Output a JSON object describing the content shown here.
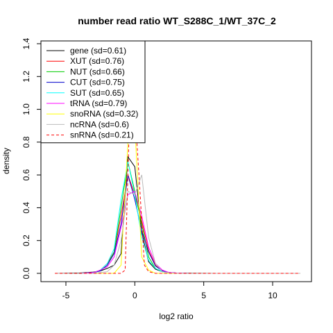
{
  "chart_data": {
    "type": "line",
    "title": "number read ratio WT_S288C_1/WT_37C_2",
    "xlabel": "log2 ratio",
    "ylabel": "density",
    "xlim": [
      -6,
      12
    ],
    "ylim": [
      0,
      1.4
    ],
    "x_ticks": [
      -5,
      0,
      5,
      10
    ],
    "x_tick_labels": [
      "-5",
      "0",
      "5",
      "10"
    ],
    "y_ticks": [
      0,
      0.2,
      0.4,
      0.6,
      0.8,
      1.0,
      1.2,
      1.4
    ],
    "y_tick_labels": [
      "0.0",
      "0.2",
      "0.4",
      "0.6",
      "0.8",
      "1.0",
      "1.2",
      "1.4"
    ],
    "legend_position": "top-left",
    "series": [
      {
        "name": "gene (sd=0.61)",
        "color": "#000000",
        "dash": "solid",
        "x": [
          -5.8,
          -4,
          -3,
          -2.5,
          -2,
          -1.5,
          -1,
          -0.5,
          0,
          0.5,
          1,
          1.5,
          2,
          2.5,
          3,
          4,
          6,
          12
        ],
        "y": [
          0,
          0.002,
          0.008,
          0.015,
          0.03,
          0.05,
          0.12,
          0.71,
          0.65,
          0.25,
          0.07,
          0.025,
          0.01,
          0.005,
          0.002,
          0.001,
          0,
          0
        ]
      },
      {
        "name": "XUT (sd=0.76)",
        "color": "#ff0000",
        "dash": "solid",
        "x": [
          -5.8,
          -4,
          -3,
          -2.5,
          -2,
          -1.5,
          -1,
          -0.5,
          0,
          0.5,
          1,
          1.5,
          2,
          2.5,
          3,
          4,
          6,
          12
        ],
        "y": [
          0,
          0,
          0.005,
          0.02,
          0.06,
          0.13,
          0.35,
          0.6,
          0.48,
          0.32,
          0.14,
          0.05,
          0.015,
          0.005,
          0.002,
          0,
          0,
          0
        ]
      },
      {
        "name": "NUT (sd=0.66)",
        "color": "#00cc00",
        "dash": "solid",
        "x": [
          -5.8,
          -4,
          -3,
          -2.5,
          -2,
          -1.5,
          -1,
          -0.5,
          0,
          0.5,
          1,
          1.5,
          2,
          2.5,
          3,
          4,
          6,
          12
        ],
        "y": [
          0,
          0,
          0.005,
          0.015,
          0.05,
          0.13,
          0.4,
          0.68,
          0.5,
          0.3,
          0.1,
          0.03,
          0.01,
          0.003,
          0.001,
          0,
          0,
          0
        ]
      },
      {
        "name": "CUT (sd=0.75)",
        "color": "#0000cc",
        "dash": "solid",
        "x": [
          -5.8,
          -4,
          -3,
          -2.5,
          -2,
          -1.5,
          -1,
          -0.5,
          0,
          0.5,
          1,
          1.5,
          2,
          2.5,
          3,
          4,
          6,
          12
        ],
        "y": [
          0,
          0,
          0.005,
          0.015,
          0.05,
          0.12,
          0.3,
          0.6,
          0.45,
          0.26,
          0.13,
          0.045,
          0.015,
          0.005,
          0.002,
          0,
          0,
          0
        ]
      },
      {
        "name": "SUT (sd=0.65)",
        "color": "#00ffff",
        "dash": "solid",
        "x": [
          -5.8,
          -4,
          -3,
          -2.5,
          -2,
          -1.5,
          -1,
          -0.5,
          0,
          0.5,
          1,
          1.5,
          2,
          2.5,
          3,
          4,
          6,
          12
        ],
        "y": [
          0,
          0,
          0.005,
          0.02,
          0.06,
          0.15,
          0.45,
          0.68,
          0.48,
          0.22,
          0.08,
          0.03,
          0.01,
          0.003,
          0.001,
          0,
          0,
          0
        ]
      },
      {
        "name": "tRNA (sd=0.79)",
        "color": "#ff00ff",
        "dash": "solid",
        "x": [
          -5.8,
          -4,
          -3,
          -2.5,
          -2,
          -1.5,
          -1,
          -0.5,
          0,
          0.5,
          1,
          1.5,
          2,
          2.5,
          3,
          4,
          6,
          12
        ],
        "y": [
          0,
          0,
          0.005,
          0.02,
          0.04,
          0.1,
          0.28,
          0.48,
          0.5,
          0.35,
          0.16,
          0.06,
          0.02,
          0.005,
          0.002,
          0,
          0,
          0
        ]
      },
      {
        "name": "snoRNA (sd=0.32)",
        "color": "#ffff00",
        "dash": "solid",
        "x": [
          -5.8,
          -4,
          -3,
          -2,
          -1.5,
          -1,
          -0.5,
          0,
          0.5,
          1,
          1.5,
          2,
          3,
          6,
          12
        ],
        "y": [
          0,
          0,
          0,
          0,
          0,
          0.05,
          0.8,
          0.9,
          0.1,
          0.02,
          0,
          0,
          0,
          0,
          0
        ]
      },
      {
        "name": "ncRNA (sd=0.6)",
        "color": "#bbbbbb",
        "dash": "solid",
        "x": [
          -5.8,
          -4,
          -3,
          -2,
          -1.5,
          -1,
          -0.5,
          0,
          0.5,
          1,
          1.5,
          2,
          2.5,
          3,
          4,
          6,
          12
        ],
        "y": [
          0,
          0,
          0,
          0.01,
          0.05,
          0.2,
          0.5,
          0.48,
          0.6,
          0.22,
          0.06,
          0.01,
          0.003,
          0.001,
          0,
          0,
          0
        ]
      },
      {
        "name": "snRNA (sd=0.21)",
        "color": "#ff0000",
        "dash": "dashed",
        "x": [
          -5.8,
          -4,
          -3,
          -2,
          -1.5,
          -1,
          -0.7,
          -0.4,
          0,
          0.3,
          0.7,
          1,
          1.5,
          2,
          3,
          6,
          12
        ],
        "y": [
          0,
          0,
          0,
          0,
          0,
          0,
          0.02,
          0.9,
          1.0,
          0.6,
          0.05,
          0.01,
          0,
          0,
          0,
          0,
          0
        ]
      }
    ]
  }
}
